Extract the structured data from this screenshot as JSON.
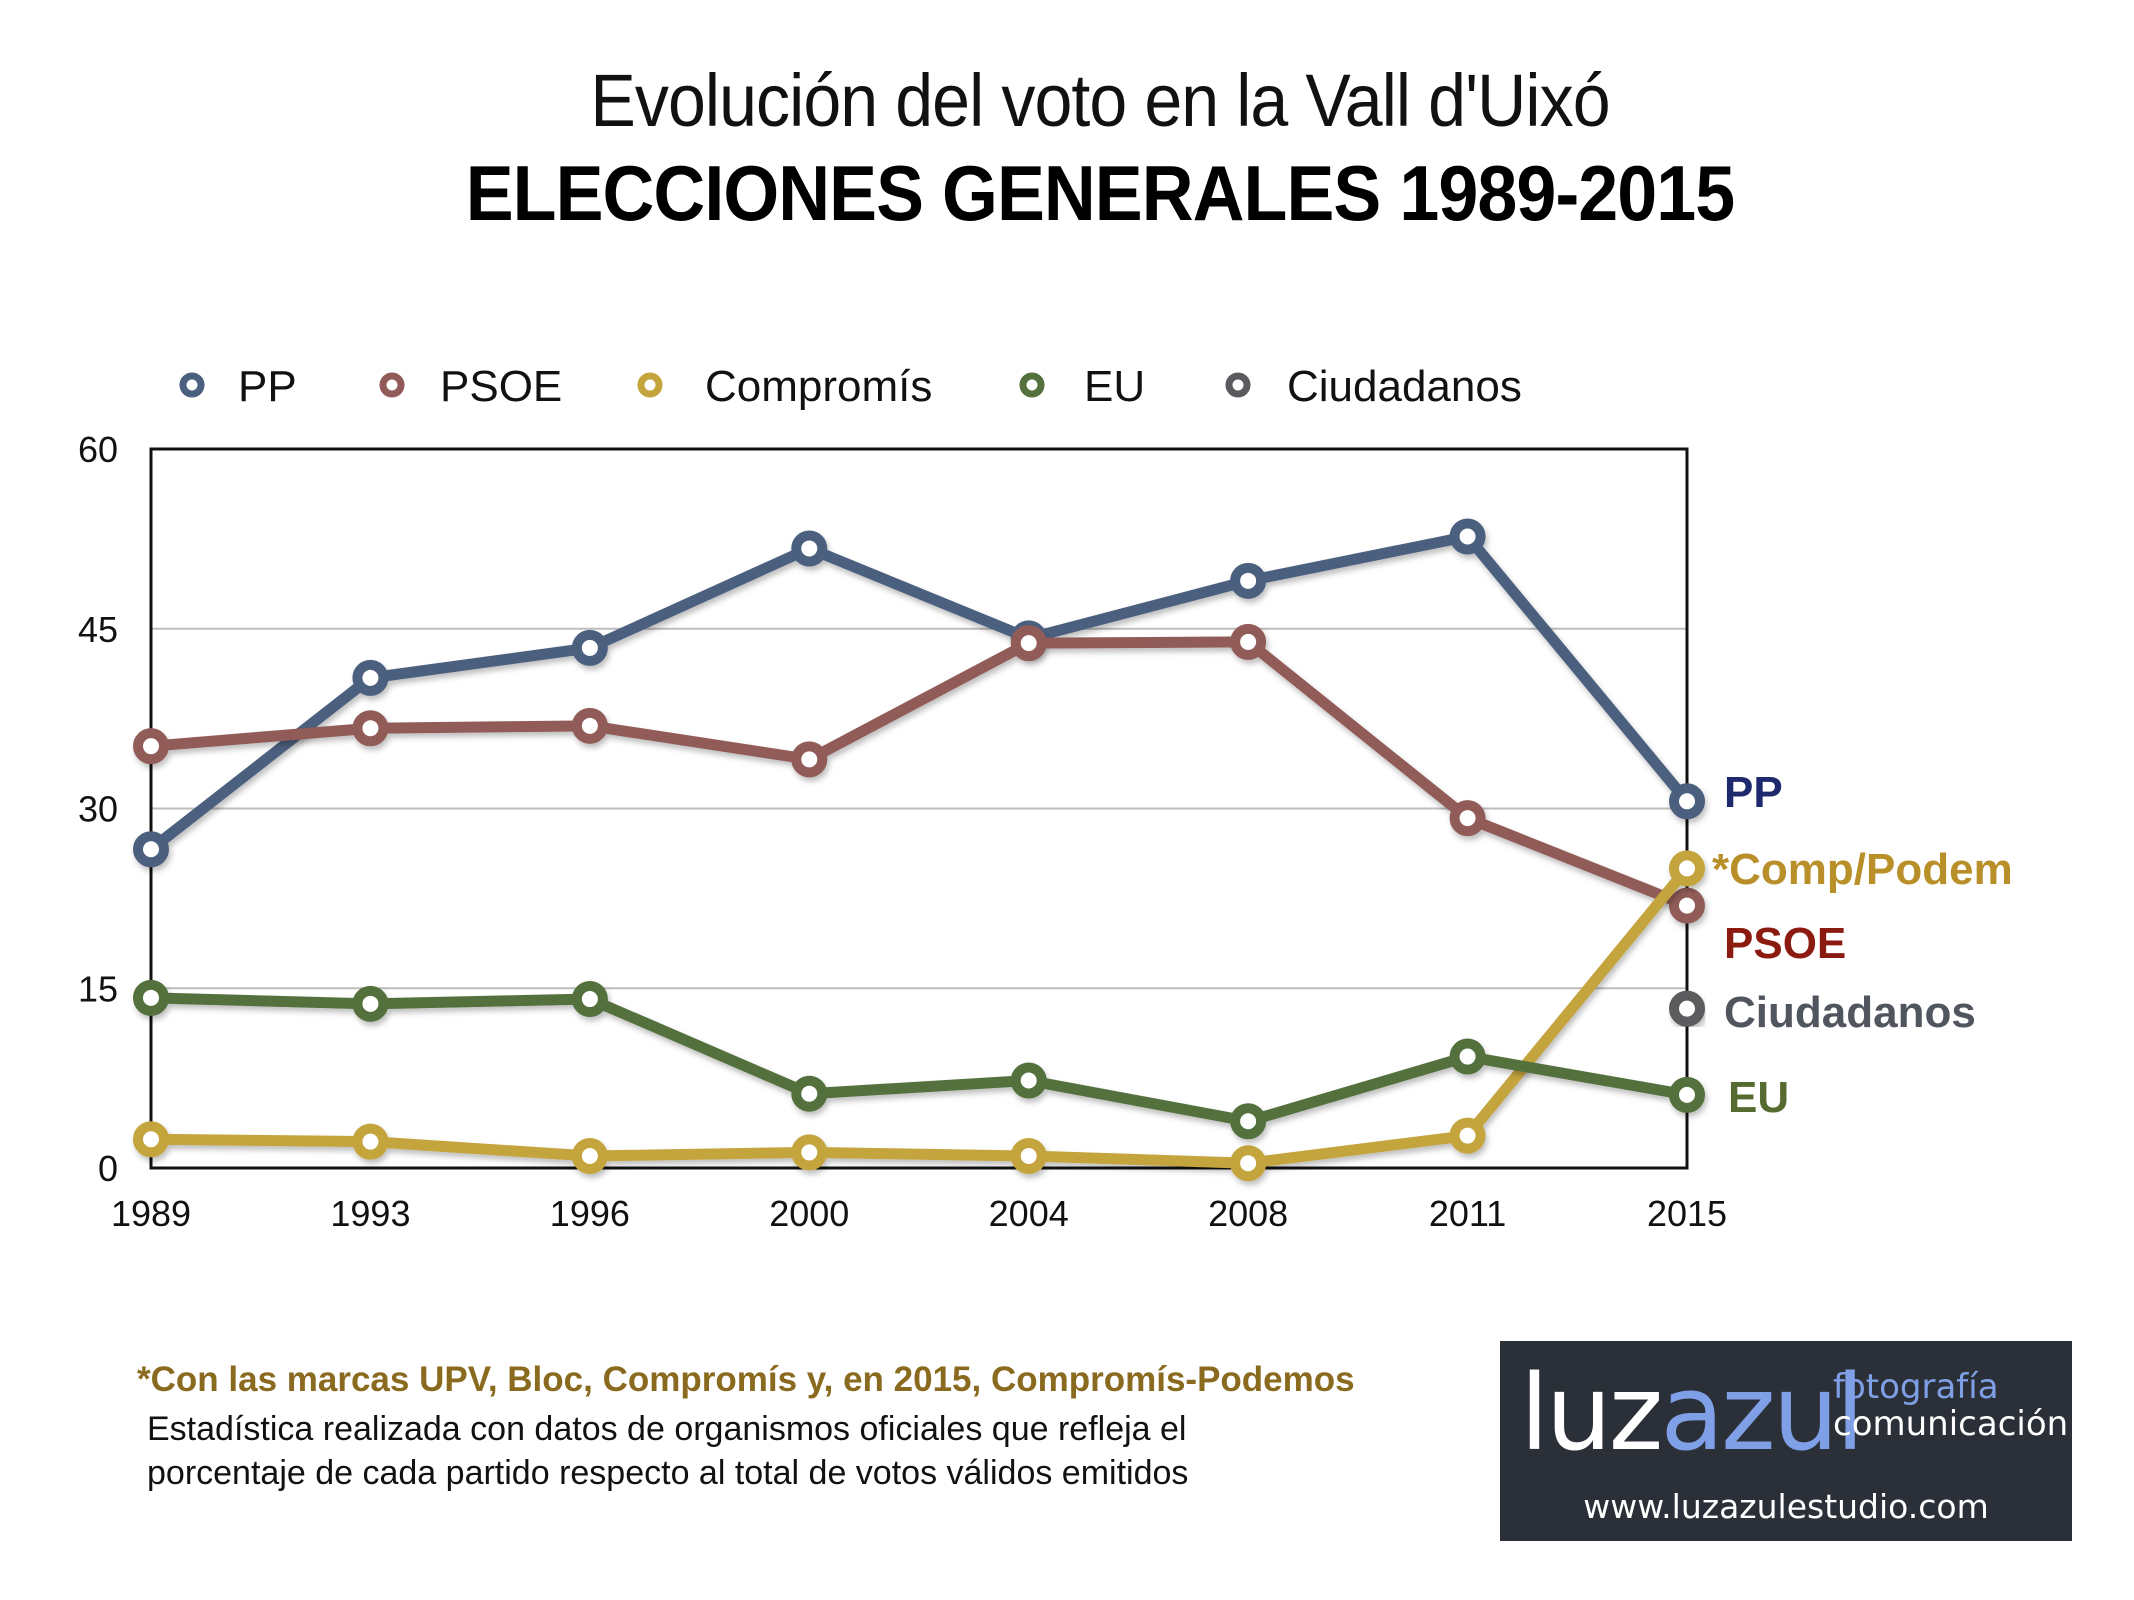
{
  "header": {
    "title": "Evolución del voto en la Vall d'Uixó",
    "subtitle": "ELECCIONES GENERALES 1989-2015"
  },
  "chart_data": {
    "type": "line",
    "title": "Evolución del voto en la Vall d'Uixó",
    "subtitle": "ELECCIONES GENERALES 1989-2015",
    "xlabel": "",
    "ylabel": "",
    "categories": [
      "1989",
      "1993",
      "1996",
      "2000",
      "2004",
      "2008",
      "2011",
      "2015"
    ],
    "ylim": [
      0,
      60
    ],
    "yticks": [
      0,
      15,
      30,
      45,
      60
    ],
    "grid": true,
    "legend_position": "top",
    "series": [
      {
        "name": "PP",
        "color": "#4b5f7e",
        "label_color": "#1f2a6e",
        "end_label": "PP",
        "values": [
          26.6,
          40.9,
          43.4,
          51.7,
          44.2,
          49.0,
          52.7,
          30.6
        ]
      },
      {
        "name": "PSOE",
        "color": "#915b59",
        "label_color": "#8b1a10",
        "end_label": "PSOE",
        "values": [
          35.2,
          36.7,
          36.9,
          34.1,
          43.8,
          43.9,
          29.2,
          21.9
        ]
      },
      {
        "name": "Compromís",
        "color": "#c4a43c",
        "label_color": "#b88f28",
        "end_label": "*Comp/Podem",
        "values": [
          2.4,
          2.2,
          1.0,
          1.3,
          1.0,
          0.4,
          2.7,
          25.0
        ]
      },
      {
        "name": "EU",
        "color": "#53703d",
        "label_color": "#556b2f",
        "end_label": "EU",
        "values": [
          14.2,
          13.7,
          14.1,
          6.2,
          7.3,
          3.9,
          9.3,
          6.1
        ]
      },
      {
        "name": "Ciudadanos",
        "color": "#5b5b5f",
        "label_color": "#50555e",
        "end_label": "Ciudadanos",
        "values": [
          null,
          null,
          null,
          null,
          null,
          null,
          null,
          13.3
        ]
      }
    ]
  },
  "notes": {
    "footnote": "*Con las marcas UPV, Bloc, Compromís y, en 2015, Compromís-Podemos",
    "source_line1": "Estadística realizada con datos de organismos oficiales que refleja el",
    "source_line2": "porcentaje de cada partido respecto al total de votos válidos emitidos"
  },
  "logo": {
    "part1": "luz",
    "part2": "azul",
    "side1": "fotografía",
    "side2": "comunicación",
    "url": "www.luzazulestudio.com"
  }
}
